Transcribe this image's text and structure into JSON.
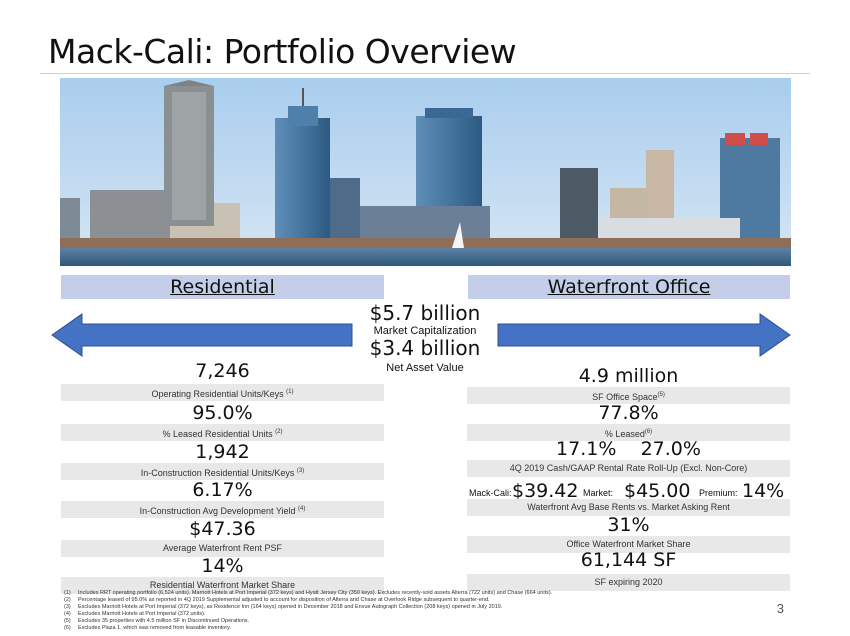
{
  "title": "Mack-Cali: Portfolio Overview",
  "page_number": "3",
  "banners": {
    "left": "Residential",
    "right": "Waterfront Office"
  },
  "center": {
    "market_cap_value": "$5.7 billion",
    "market_cap_label": "Market Capitalization",
    "nav_value": "$3.4 billion",
    "nav_label": "Net Asset Value"
  },
  "residential": [
    {
      "value": "7,246",
      "label": "Operating Residential Units/Keys",
      "note": "(1)"
    },
    {
      "value": "95.0%",
      "label": "% Leased Residential Units",
      "note": "(2)"
    },
    {
      "value": "1,942",
      "label": "In-Construction Residential Units/Keys",
      "note": "(3)"
    },
    {
      "value": "6.17%",
      "label": "In-Construction Avg Development Yield",
      "note": "(4)"
    },
    {
      "value": "$47.36",
      "label": "Average Waterfront Rent PSF",
      "note": ""
    },
    {
      "value": "14%",
      "label": "Residential Waterfront Market Share",
      "note": ""
    }
  ],
  "office": {
    "sf_value": "4.9 million",
    "sf_label": "SF Office Space",
    "sf_note": "(5)",
    "leased_value": "77.8%",
    "leased_label": "% Leased",
    "leased_note": "(6)",
    "rollup_cash": "17.1%",
    "rollup_gaap": "27.0%",
    "rollup_label": "4Q 2019 Cash/GAAP Rental Rate Roll-Up (Excl. Non-Core)",
    "mc_label": "Mack-Cali:",
    "mc_value": "$39.42",
    "mkt_label": "Market:",
    "mkt_value": "$45.00",
    "prem_label": "Premium:",
    "prem_value": "14%",
    "rents_label": "Waterfront Avg Base Rents vs. Market Asking Rent",
    "share_value": "31%",
    "share_label": "Office Waterfront Market Share",
    "exp_value": "61,144 SF",
    "exp_label": "SF expiring 2020"
  },
  "footnotes": [
    {
      "n": "(1)",
      "text": "Includes RRT operating portfolio (6,524 units), Marriott Hotels at Port Imperial (372 keys) and Hyatt Jersey City (350 keys). Excludes recently-sold assets Alterra (722 units) and Chase (664 units)."
    },
    {
      "n": "(2)",
      "text": "Percentage leased of 95.0% as reported in 4Q 2019 Supplemental adjusted to account for disposition of Alterra and Chase at Overlook Ridge subsequent to quarter-end."
    },
    {
      "n": "(3)",
      "text": "Excludes Marriott Hotels at Port Imperial (372 keys), as Residence Inn (164 keys) opened in December 2018 and Envue Autograph Collection (208 keys) opened in July 2019."
    },
    {
      "n": "(4)",
      "text": "Excludes Marriott Hotels at Port Imperial (372 units)."
    },
    {
      "n": "(5)",
      "text": "Excludes 35 properties with 4.5 million SF in Discontinued Operations."
    },
    {
      "n": "(6)",
      "text": "Excludes Plaza 1, which was removed from leasable inventory."
    }
  ],
  "colors": {
    "banner": "#c5cee9",
    "arrow": "#4472c4",
    "arrow_stroke": "#2f4f8f",
    "band": "#e8e8e8"
  }
}
